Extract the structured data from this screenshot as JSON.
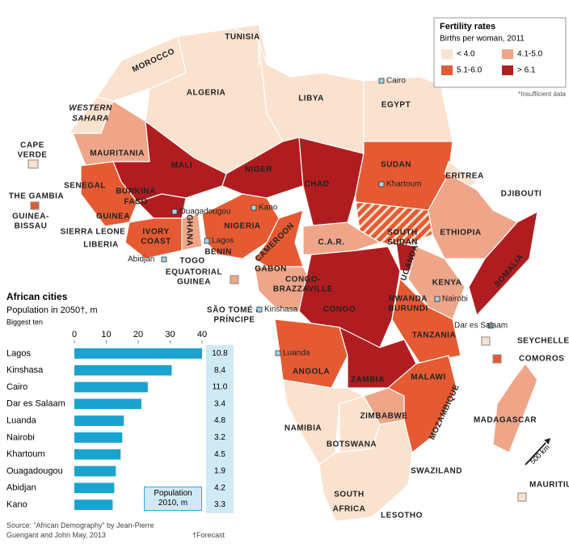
{
  "legend": {
    "title": "Fertility rates",
    "subtitle": "Births per woman, 2011",
    "items": [
      {
        "label": "< 4.0",
        "color": "#fbe2cf"
      },
      {
        "label": "4.1-5.0",
        "color": "#eea588"
      },
      {
        "label": "5.1-6.0",
        "color": "#e55a32"
      },
      {
        "label": "> 6.1",
        "color": "#b01d20"
      }
    ],
    "note": "*Insufficient data"
  },
  "countries": [
    "TUNISIA",
    "MOROCCO",
    "ALGERIA",
    "LIBYA",
    "EGYPT",
    "WESTERN",
    "SAHARA",
    "CAPE",
    "VERDE",
    "MAURITANIA",
    "SENEGAL",
    "THE GAMBIA",
    "GUINEA-",
    "BISSAU",
    "GUINEA",
    "SIERRA LEONE",
    "LIBERIA",
    "MALI",
    "BURKINA",
    "FASO",
    "IVORY",
    "COAST",
    "GHANA",
    "NIGER",
    "CHAD",
    "NIGERIA",
    "TOGO",
    "BENIN",
    "CAMEROON",
    "EQUATORIAL",
    "GUINEA",
    "SÃO TOMÉ &",
    "PRÍNCIPE",
    "GABON",
    "CONGO-",
    "BRAZZAVILLE",
    "C.A.R.",
    "SUDAN",
    "SOUTH",
    "SUDAN",
    "ERITREA",
    "DJIBOUTI",
    "ETHIOPIA",
    "SOMALIA",
    "UGANDA",
    "KENYA",
    "RWANDA",
    "BURUNDI",
    "CONGO",
    "TANZANIA",
    "ANGOLA",
    "ZAMBIA",
    "MALAWI",
    "MOZAMBIQUE",
    "ZIMBABWE",
    "NAMIBIA",
    "BOTSWANA",
    "SWAZILAND",
    "SOUTH",
    "AFRICA",
    "LESOTHO",
    "MADAGASCAR",
    "SEYCHELLES",
    "COMOROS",
    "MAURITIUS"
  ],
  "cities": [
    "Cairo",
    "Khartoum",
    "Kano",
    "Ouagadougou",
    "Lagos",
    "Abidjan",
    "Kinshasa",
    "Nairobi",
    "Luanda",
    "Dar es Salaam"
  ],
  "scale": "500 km",
  "chart_data": {
    "type": "bar",
    "orientation": "horizontal",
    "title": "African cities",
    "subtitle": "Population in 2050†, m",
    "note": "Biggest ten",
    "categories": [
      "Lagos",
      "Kinshasa",
      "Cairo",
      "Dar es Salaam",
      "Luanda",
      "Nairobi",
      "Khartoum",
      "Ouagadougou",
      "Abidjan",
      "Kano"
    ],
    "values": [
      40,
      30.5,
      23,
      21,
      15.5,
      15,
      14.5,
      13,
      12.5,
      12
    ],
    "color": "#1ba3d0",
    "xlim": [
      0,
      40
    ],
    "xticks": [
      0,
      10,
      20,
      30,
      40
    ],
    "population_2010": {
      "name": "Population 2010, m",
      "values": [
        10.8,
        8.4,
        11.0,
        3.4,
        4.8,
        3.2,
        4.5,
        1.9,
        4.2,
        3.3
      ],
      "value_labels": [
        "10.8",
        "8.4",
        "11.0",
        "3.4",
        "4.8",
        "3.2",
        "4.5",
        "1.9",
        "4.2",
        "3.3"
      ]
    }
  },
  "source": "Source: “African Demography” by Jean-Pierre Guengant and John May, 2013",
  "footnote": "†Forecast"
}
